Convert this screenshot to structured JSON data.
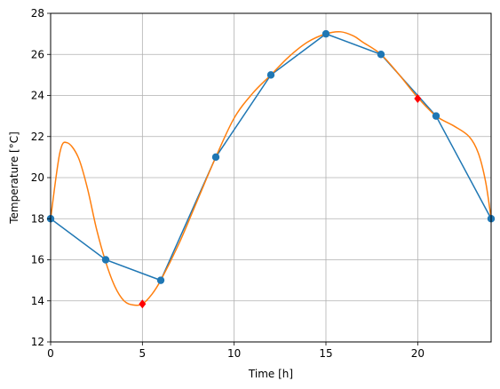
{
  "chart_data": {
    "type": "line",
    "xlabel": "Time [h]",
    "ylabel": "Temperature [°C]",
    "xlim": [
      0,
      24
    ],
    "ylim": [
      12,
      28
    ],
    "xticks": [
      0,
      5,
      10,
      15,
      20
    ],
    "yticks": [
      12,
      14,
      16,
      18,
      20,
      22,
      24,
      26,
      28
    ],
    "grid": true,
    "colors": {
      "measured": "#1f77b4",
      "interpolated": "#ff7f0e",
      "markers": "#ff0000"
    },
    "series": [
      {
        "style": "line-with-circle-markers",
        "x": [
          0,
          3,
          6,
          9,
          12,
          15,
          18,
          21,
          24
        ],
        "y": [
          18,
          16,
          15,
          21,
          25,
          27,
          26,
          23,
          18
        ]
      },
      {
        "style": "smooth-curve",
        "x": [
          0,
          0.5,
          0.9,
          1.5,
          2,
          2.5,
          3,
          3.5,
          4,
          4.5,
          5,
          5.5,
          6,
          7,
          8,
          9,
          10,
          11,
          12,
          13,
          14,
          15,
          15.8,
          16.5,
          17,
          18,
          19,
          20,
          21,
          22,
          22.8,
          23.3,
          23.7,
          24
        ],
        "y": [
          18,
          21.2,
          21.7,
          21.0,
          19.5,
          17.5,
          15.9,
          14.7,
          14.0,
          13.8,
          13.85,
          14.3,
          15,
          16.8,
          18.9,
          21,
          22.9,
          24.1,
          25,
          25.9,
          26.6,
          27,
          27.1,
          26.9,
          26.6,
          26,
          25,
          23.9,
          23,
          22.5,
          22.0,
          21.2,
          19.8,
          18
        ]
      },
      {
        "style": "diamond-markers",
        "x": [
          5,
          20
        ],
        "y": [
          13.85,
          23.85
        ]
      }
    ]
  }
}
